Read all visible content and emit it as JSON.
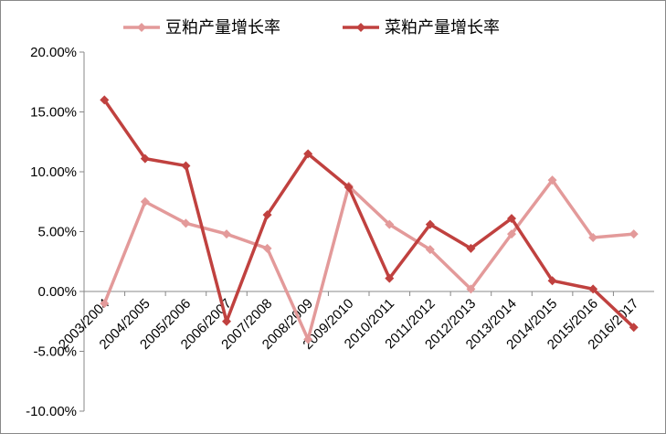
{
  "chart_data": {
    "type": "line",
    "categories": [
      "2003/2004",
      "2004/2005",
      "2005/2006",
      "2006/2007",
      "2007/2008",
      "2008/2009",
      "2009/2010",
      "2010/2011",
      "2011/2012",
      "2012/2013",
      "2013/2014",
      "2014/2015",
      "2015/2016",
      "2016/2017"
    ],
    "series": [
      {
        "name": "豆粕产量增长率",
        "color": "#e39a9a",
        "values": [
          -1.0,
          7.5,
          5.7,
          4.8,
          3.6,
          -4.0,
          8.8,
          5.6,
          3.5,
          0.2,
          4.8,
          9.3,
          4.5,
          4.8
        ]
      },
      {
        "name": "菜粕产量增长率",
        "color": "#c0413f",
        "values": [
          16.0,
          11.1,
          10.5,
          -2.5,
          6.4,
          11.5,
          8.7,
          1.1,
          5.6,
          3.6,
          6.1,
          0.9,
          0.2,
          -3.0
        ]
      }
    ],
    "ylim": [
      -10,
      20
    ],
    "yticks": [
      {
        "value": -10,
        "label": "-10.00%"
      },
      {
        "value": -5,
        "label": "-5.00%"
      },
      {
        "value": 0,
        "label": "0.00%"
      },
      {
        "value": 5,
        "label": "5.00%"
      },
      {
        "value": 10,
        "label": "10.00%"
      },
      {
        "value": 15,
        "label": "15.00%"
      },
      {
        "value": 20,
        "label": "20.00%"
      }
    ],
    "legend": "top"
  }
}
